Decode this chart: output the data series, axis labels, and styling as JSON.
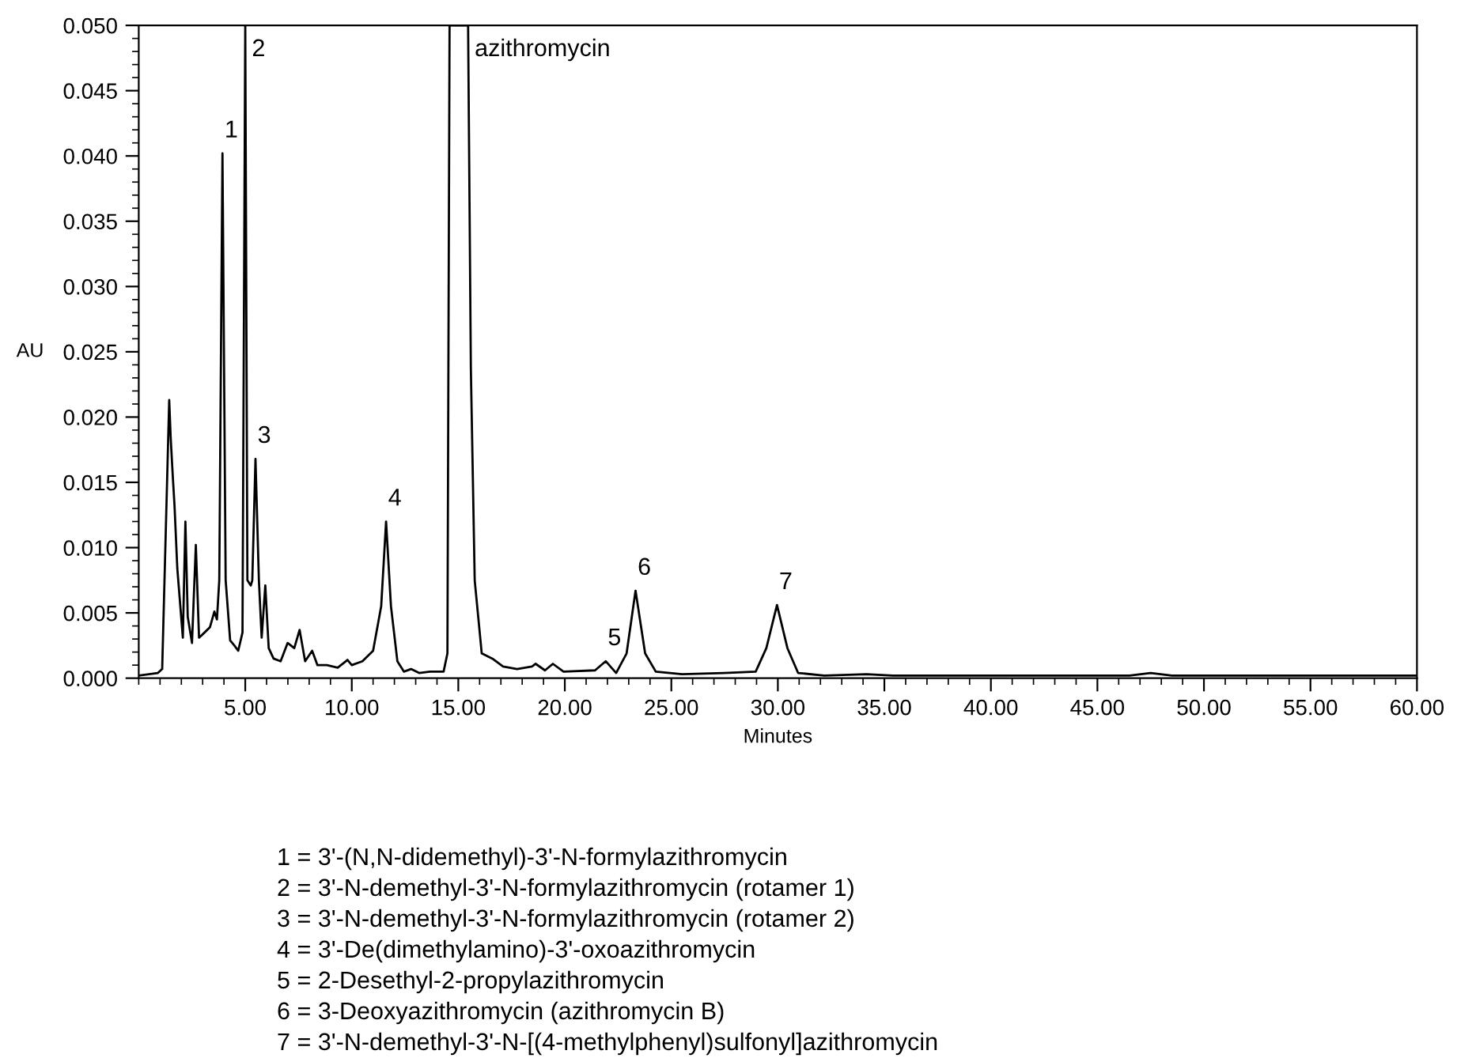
{
  "chart_data": {
    "type": "line",
    "xlabel": "Minutes",
    "ylabel": "AU",
    "xlim": [
      0,
      60
    ],
    "xticks": [
      {
        "value": 5,
        "label": "5.00"
      },
      {
        "value": 10,
        "label": "10.00"
      },
      {
        "value": 15,
        "label": "15.00"
      },
      {
        "value": 20,
        "label": "20.00"
      },
      {
        "value": 25,
        "label": "25.00"
      },
      {
        "value": 30,
        "label": "30.00"
      },
      {
        "value": 35,
        "label": "35.00"
      },
      {
        "value": 40,
        "label": "40.00"
      },
      {
        "value": 45,
        "label": "45.00"
      },
      {
        "value": 50,
        "label": "50.00"
      },
      {
        "value": 55,
        "label": "55.00"
      },
      {
        "value": 60,
        "label": "60.00"
      }
    ],
    "ylim": [
      0,
      0.05
    ],
    "yticks": [
      {
        "value": 0,
        "label": "0.000"
      },
      {
        "value": 0.005,
        "label": "0.005"
      },
      {
        "value": 0.01,
        "label": "0.010"
      },
      {
        "value": 0.015,
        "label": "0.015"
      },
      {
        "value": 0.02,
        "label": "0.020"
      },
      {
        "value": 0.025,
        "label": "0.025"
      },
      {
        "value": 0.03,
        "label": "0.030"
      },
      {
        "value": 0.035,
        "label": "0.035"
      },
      {
        "value": 0.04,
        "label": "0.040"
      },
      {
        "value": 0.045,
        "label": "0.045"
      },
      {
        "value": 0.05,
        "label": "0.050"
      }
    ],
    "grid": false,
    "legend": false,
    "marker": "none",
    "line_style": "solid",
    "series": [
      {
        "color": "#000000",
        "x": [
          0,
          0.9,
          1.1,
          1.43,
          1.5,
          1.6,
          1.68,
          1.81,
          2.07,
          2.19,
          2.3,
          2.5,
          2.68,
          2.83,
          3.09,
          3.34,
          3.55,
          3.67,
          3.78,
          3.93,
          4.08,
          4.29,
          4.49,
          4.67,
          4.87,
          5.0,
          5.1,
          5.26,
          5.33,
          5.48,
          5.64,
          5.77,
          5.94,
          6.1,
          6.33,
          6.66,
          6.99,
          7.3,
          7.55,
          7.81,
          8.14,
          8.39,
          8.83,
          9.34,
          9.8,
          10.0,
          10.5,
          11.0,
          11.38,
          11.61,
          11.84,
          12.14,
          12.45,
          12.78,
          13.16,
          13.67,
          14.31,
          14.49,
          14.59,
          15.46,
          15.59,
          15.77,
          16.1,
          16.6,
          17.1,
          17.76,
          18.46,
          18.63,
          19.07,
          19.44,
          19.94,
          21.42,
          21.92,
          22.41,
          22.9,
          23.32,
          23.77,
          24.27,
          25.5,
          27.48,
          28.96,
          29.46,
          29.96,
          30.45,
          30.95,
          32.18,
          34.16,
          35.4,
          37.5,
          45,
          46.5,
          47.5,
          48.5,
          52,
          60
        ],
        "values": [
          0.0002,
          0.0004,
          0.0007,
          0.0213,
          0.0184,
          0.0154,
          0.0132,
          0.0084,
          0.0031,
          0.012,
          0.0047,
          0.0027,
          0.0102,
          0.0031,
          0.0035,
          0.0039,
          0.0051,
          0.0045,
          0.0075,
          0.0402,
          0.0075,
          0.0029,
          0.0025,
          0.0021,
          0.0035,
          0.05,
          0.0075,
          0.0071,
          0.0075,
          0.0168,
          0.0075,
          0.0031,
          0.0071,
          0.0023,
          0.0015,
          0.0013,
          0.0027,
          0.0023,
          0.0037,
          0.0013,
          0.0021,
          0.001,
          0.001,
          0.0008,
          0.0014,
          0.001,
          0.0013,
          0.0021,
          0.0055,
          0.012,
          0.0055,
          0.0013,
          0.0005,
          0.0007,
          0.0004,
          0.0005,
          0.0005,
          0.0019,
          0.05,
          0.05,
          0.0237,
          0.0075,
          0.0019,
          0.0015,
          0.0009,
          0.0007,
          0.0009,
          0.0011,
          0.0006,
          0.0011,
          0.0005,
          0.0006,
          0.0013,
          0.0004,
          0.0019,
          0.0067,
          0.0019,
          0.0005,
          0.0003,
          0.0004,
          0.0005,
          0.0023,
          0.0056,
          0.0023,
          0.0004,
          0.0002,
          0.0003,
          0.0002,
          0.0002,
          0.0002,
          0.0002,
          0.0004,
          0.0002,
          0.0002,
          0.0002
        ]
      }
    ],
    "annotations": [
      {
        "text": "1",
        "x": 3.93,
        "y": 0.0402
      },
      {
        "text": "2",
        "x": 5.0,
        "y": 0.05
      },
      {
        "text": "3",
        "x": 5.48,
        "y": 0.0168
      },
      {
        "text": "4",
        "x": 11.61,
        "y": 0.012
      },
      {
        "text": "5",
        "x": 21.92,
        "y": 0.0013
      },
      {
        "text": "6",
        "x": 23.32,
        "y": 0.0067
      },
      {
        "text": "7",
        "x": 29.96,
        "y": 0.0056
      },
      {
        "text": "azithromycin",
        "x": 15.46,
        "y": 0.05
      },
      "1 = 3'-(N,N-didemethyl)-3'-N-formylazithromycin",
      "2 = 3'-N-demethyl-3'-N-formylazithromycin (rotamer 1)",
      "3 = 3'-N-demethyl-3'-N-formylazithromycin (rotamer 2)",
      "4 = 3'-De(dimethylamino)-3'-oxoazithromycin",
      "5 = 2-Desethyl-2-propylazithromycin",
      "6 = 3-Deoxyazithromycin (azithromycin B)",
      "7 = 3'-N-demethyl-3'-N-[(4-methylphenyl)sulfonyl]azithromycin"
    ]
  }
}
